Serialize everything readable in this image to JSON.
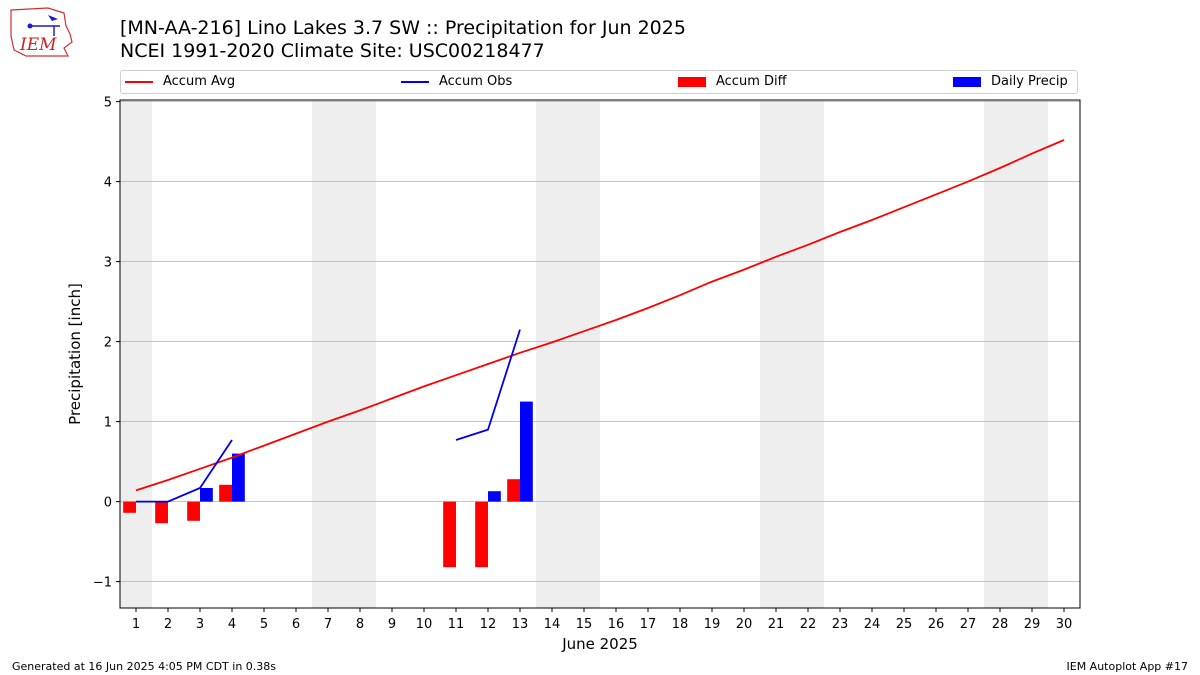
{
  "header": {
    "title_line1": "[MN-AA-216] Lino Lakes 3.7 SW :: Precipitation for Jun 2025",
    "title_line2": "NCEI 1991-2020 Climate Site: USC00218477",
    "logo_text": "IEM"
  },
  "legend": {
    "accum_avg": "Accum Avg",
    "accum_obs": "Accum Obs",
    "accum_diff": "Accum Diff",
    "daily_precip": "Daily Precip",
    "placement": "top (above plot)"
  },
  "footer": {
    "left": "Generated at 16 Jun 2025 4:05 PM CDT in 0.38s",
    "right": "IEM Autoplot App #17"
  },
  "colors": {
    "accum_avg": "#ff0000",
    "accum_obs": "#0000ee",
    "accum_diff": "#ff0000",
    "daily_precip": "#0000ff",
    "weekend_band": "#eeeeee",
    "grid": "#b0b0b0"
  },
  "chart_data": {
    "type": "bar",
    "xlabel": "June 2025",
    "ylabel": "Precipitation [inch]",
    "xlim": [
      1,
      30
    ],
    "ylim": [
      -1.33,
      5.02
    ],
    "yticks": [
      -1,
      0,
      1,
      2,
      3,
      4,
      5
    ],
    "ytick_labels": [
      "−1",
      "0",
      "1",
      "2",
      "3",
      "4",
      "5"
    ],
    "x": [
      1,
      2,
      3,
      4,
      5,
      6,
      7,
      8,
      9,
      10,
      11,
      12,
      13,
      14,
      15,
      16,
      17,
      18,
      19,
      20,
      21,
      22,
      23,
      24,
      25,
      26,
      27,
      28,
      29,
      30
    ],
    "grid": "horizontal",
    "weekend_bands": [
      [
        0.5,
        1.5
      ],
      [
        6.5,
        8.5
      ],
      [
        13.5,
        15.5
      ],
      [
        20.5,
        22.5
      ],
      [
        27.5,
        29.5
      ]
    ],
    "series": [
      {
        "name": "Accum Avg",
        "kind": "line",
        "values": [
          0.14,
          0.27,
          0.41,
          0.55,
          0.7,
          0.85,
          1.0,
          1.14,
          1.29,
          1.44,
          1.58,
          1.72,
          1.86,
          1.99,
          2.13,
          2.27,
          2.42,
          2.58,
          2.75,
          2.9,
          3.06,
          3.21,
          3.37,
          3.52,
          3.68,
          3.84,
          4.0,
          4.17,
          4.35,
          4.52
        ]
      },
      {
        "name": "Accum Obs",
        "kind": "line",
        "values": [
          0.0,
          0.0,
          0.17,
          0.77,
          null,
          null,
          null,
          null,
          null,
          null,
          0.77,
          0.9,
          2.15,
          null,
          null,
          null,
          null,
          null,
          null,
          null,
          null,
          null,
          null,
          null,
          null,
          null,
          null,
          null,
          null,
          null
        ]
      },
      {
        "name": "Accum Diff",
        "kind": "bar",
        "values": [
          -0.14,
          -0.27,
          -0.24,
          0.21,
          null,
          null,
          null,
          null,
          null,
          null,
          -0.82,
          -0.82,
          0.28,
          null,
          null,
          null,
          null,
          null,
          null,
          null,
          null,
          null,
          null,
          null,
          null,
          null,
          null,
          null,
          null,
          null
        ]
      },
      {
        "name": "Daily Precip",
        "kind": "bar",
        "values": [
          0.0,
          0.0,
          0.17,
          0.6,
          null,
          null,
          null,
          null,
          null,
          null,
          null,
          0.13,
          1.25,
          null,
          null,
          null,
          null,
          null,
          null,
          null,
          null,
          null,
          null,
          null,
          null,
          null,
          null,
          null,
          null,
          null
        ]
      }
    ]
  }
}
